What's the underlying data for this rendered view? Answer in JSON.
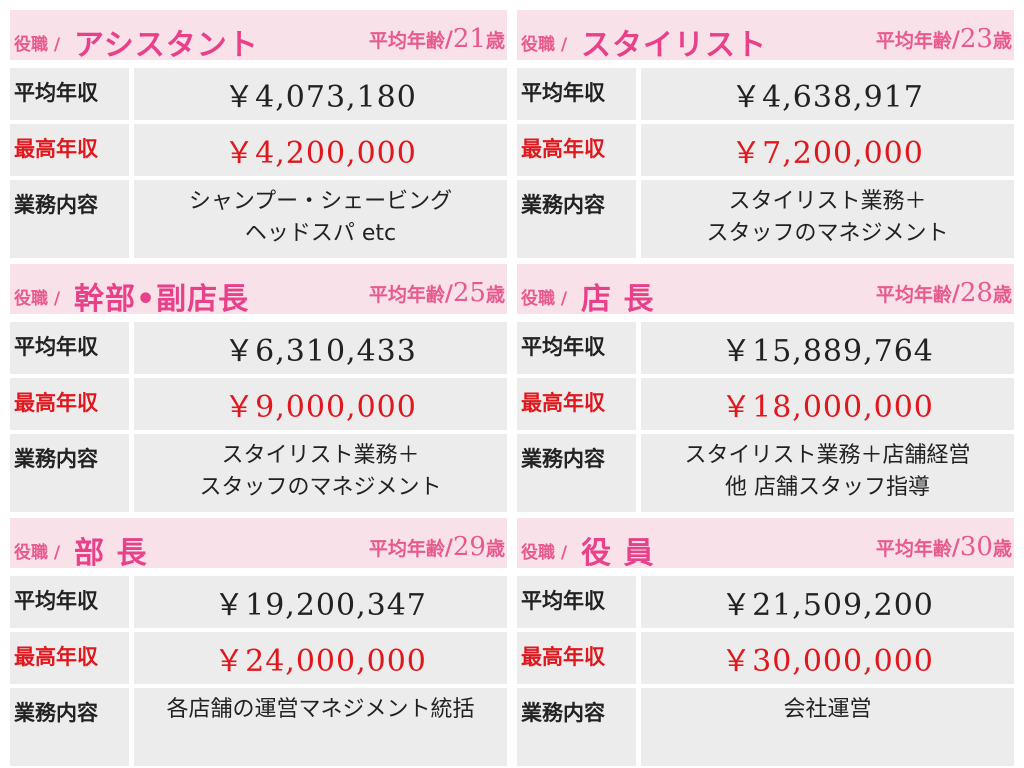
{
  "labels": {
    "role_prefix": "役職 /",
    "avg_age_label": "平均年齢",
    "age_sep": "/",
    "age_unit": "歳",
    "avg_income": "平均年収",
    "max_income": "最高年収",
    "duties": "業務内容"
  },
  "colors": {
    "header_bg": "#f9e1ea",
    "accent_pink": "#e8418a",
    "highlight_red": "#e0181e",
    "cell_bg": "#ececec"
  },
  "cards": [
    {
      "role": "アシスタント",
      "age": "21",
      "avg": "￥4,073,180",
      "max": "￥4,200,000",
      "duties": [
        "シャンプー・シェービング",
        "ヘッドスパ etc"
      ]
    },
    {
      "role": "スタイリスト",
      "age": "23",
      "avg": "￥4,638,917",
      "max": "￥7,200,000",
      "duties": [
        "スタイリスト業務＋",
        "スタッフのマネジメント"
      ]
    },
    {
      "role": "幹部•副店長",
      "age": "25",
      "avg": "￥6,310,433",
      "max": "￥9,000,000",
      "duties": [
        "スタイリスト業務＋",
        "スタッフのマネジメント"
      ]
    },
    {
      "role": "店 長",
      "age": "28",
      "avg": "￥15,889,764",
      "max": "￥18,000,000",
      "duties": [
        "スタイリスト業務＋店舗経営",
        "他 店舗スタッフ指導"
      ]
    },
    {
      "role": "部 長",
      "age": "29",
      "avg": "￥19,200,347",
      "max": "￥24,000,000",
      "duties": [
        "各店舗の運営マネジメント統括"
      ]
    },
    {
      "role": "役 員",
      "age": "30",
      "avg": "￥21,509,200",
      "max": "￥30,000,000",
      "duties": [
        "会社運営"
      ]
    }
  ]
}
